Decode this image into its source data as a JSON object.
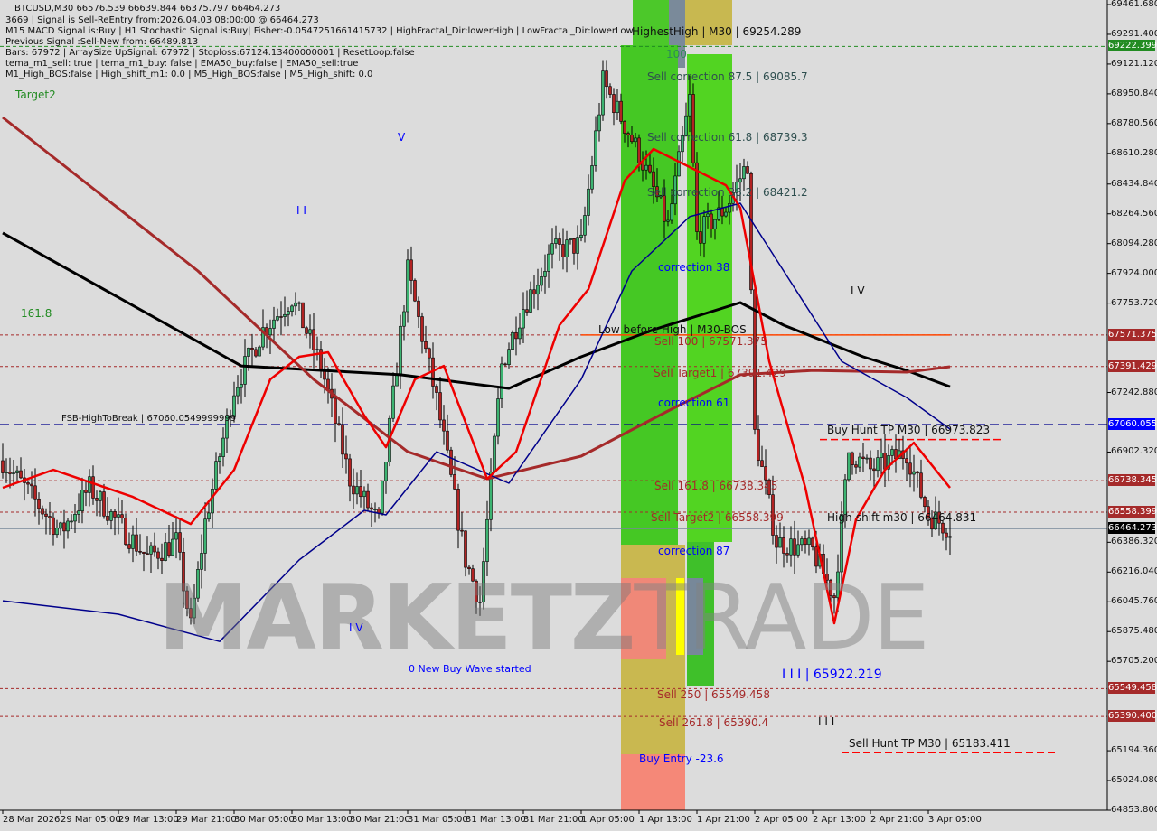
{
  "header": {
    "symbol_line": "BTCUSD,M30  66576.539 66639.844 66375.797 66464.273",
    "lines": [
      "3669 | Signal is Sell-ReEntry from:2026.04.03 08:00:00 @ 66464.273",
      "M15 MACD Signal is:Buy | H1 Stochastic Signal is:Buy| Fisher:-0.0547251661415732 | HighFractal_Dir:lowerHigh | LowFractal_Dir:lowerLow",
      "Previous Signal :Sell-New from: 66489.813",
      "Bars: 67972 | ArraySize UpSignal: 67972 | Stoploss:67124.13400000001 | ResetLoop:false",
      "tema_m1_sell: true | tema_m1_buy: false | EMA50_buy:false | EMA50_sell:true",
      "M1_High_BOS:false | High_shift_m1: 0.0 | M5_High_BOS:false | M5_High_shift: 0.0"
    ]
  },
  "watermark": {
    "bold": "MARKETZ",
    "thin": "TRADE"
  },
  "labels": {
    "target2": "Target2",
    "fib_1618": "161.8",
    "fib_100": "100",
    "fsb": "FSB-HighToBreak | 67060.0549999999",
    "wave_ii": "I I",
    "wave_v": "V",
    "wave_iv_left": "I V",
    "wave_iv_right": "I V",
    "new_buy_wave": "0 New Buy Wave started",
    "wave_iii_value": "I I I | 65922.219",
    "wave_iii": "I I I",
    "highest_high": "HighestHigh  |  M30  |  69254.289",
    "sell_corr_875": "Sell correction 87.5 | 69085.7",
    "sell_corr_618": "Sell correction 61.8 | 68739.3",
    "sell_corr_382": "Sell correction 38.2 | 68421.2",
    "correction_38": "correction 38",
    "correction_61": "correction 61",
    "correction_87": "correction 87",
    "low_before_high": "Low before High  |  M30-BOS",
    "sell_100": "Sell 100 | 67571.375",
    "sell_target1": "Sell Target1 | 67391.429",
    "buy_hunt_tp": "Buy Hunt TP M30  |  66973.823",
    "sell_1618": "Sell 161.8 | 66738.345",
    "sell_target2": "Sell Target2 | 66558.399",
    "high_shift": "High-shift m30  |  66464.831",
    "sell_250": "Sell  250 | 65549.458",
    "sell_2618": "Sell  261.8 | 65390.4",
    "sell_hunt_tp": "Sell Hunt TP M30 | 65183.411",
    "buy_entry": "Buy Entry -23.6"
  },
  "colors": {
    "background": "#dcdcdc",
    "bull": "#3cb371",
    "bear": "#b22222",
    "tema": "#ee0000",
    "ma_black": "#000000",
    "ma_brown": "#a52a2a",
    "ma_navy": "#00008b",
    "tag_green": "#228b22",
    "tag_red": "#a52a2a",
    "tag_blue": "#0000ff",
    "tag_black": "#000000"
  },
  "chart_data": {
    "type": "candlestick",
    "symbol": "BTCUSD",
    "timeframe": "M30",
    "ylim": [
      64853.8,
      69461.68
    ],
    "xlim": [
      "2026-03-28T21:00",
      "2026-04-03T08:00"
    ],
    "grid": false,
    "y_ticks": [
      "69461.680",
      "69291.400",
      "69121.120",
      "68950.840",
      "68780.560",
      "68610.280",
      "68434.840",
      "68264.560",
      "68094.280",
      "67924.000",
      "67753.720",
      "67242.880",
      "66902.320",
      "66386.320",
      "66216.040",
      "66045.760",
      "65875.480",
      "65705.200",
      "65194.360",
      "65024.080",
      "64853.800"
    ],
    "y_tick_values": [
      69461.68,
      69291.4,
      69121.12,
      68950.84,
      68780.56,
      68610.28,
      68434.84,
      68264.56,
      68094.28,
      67924.0,
      67753.72,
      67242.88,
      66902.32,
      66386.32,
      66216.04,
      66045.76,
      65875.48,
      65705.2,
      65194.36,
      65024.08,
      64853.8
    ],
    "x_ticks": [
      {
        "t": "2026-03-28T21:00",
        "label": "28 Mar 2026"
      },
      {
        "t": "2026-03-29T05:00",
        "label": "29 Mar 05:00"
      },
      {
        "t": "2026-03-29T13:00",
        "label": "29 Mar 13:00"
      },
      {
        "t": "2026-03-29T21:00",
        "label": "29 Mar 21:00"
      },
      {
        "t": "2026-03-30T05:00",
        "label": "30 Mar 05:00"
      },
      {
        "t": "2026-03-30T13:00",
        "label": "30 Mar 13:00"
      },
      {
        "t": "2026-03-30T21:00",
        "label": "30 Mar 21:00"
      },
      {
        "t": "2026-03-31T05:00",
        "label": "31 Mar 05:00"
      },
      {
        "t": "2026-03-31T13:00",
        "label": "31 Mar 13:00"
      },
      {
        "t": "2026-03-31T21:00",
        "label": "31 Mar 21:00"
      },
      {
        "t": "2026-04-01T05:00",
        "label": "1 Apr 05:00"
      },
      {
        "t": "2026-04-01T13:00",
        "label": "1 Apr 13:00"
      },
      {
        "t": "2026-04-01T21:00",
        "label": "1 Apr 21:00"
      },
      {
        "t": "2026-04-02T05:00",
        "label": "2 Apr 05:00"
      },
      {
        "t": "2026-04-02T13:00",
        "label": "2 Apr 13:00"
      },
      {
        "t": "2026-04-02T21:00",
        "label": "2 Apr 21:00"
      },
      {
        "t": "2026-04-03T05:00",
        "label": "3 Apr 05:00"
      }
    ],
    "price_tags": [
      {
        "value": 69222.399,
        "label": "69222.399",
        "color": "#228b22"
      },
      {
        "value": 67571.375,
        "label": "67571.375",
        "color": "#a52a2a"
      },
      {
        "value": 67391.429,
        "label": "67391.429",
        "color": "#a52a2a"
      },
      {
        "value": 67060.055,
        "label": "67060.055",
        "color": "#0000ff"
      },
      {
        "value": 66738.345,
        "label": "66738.345",
        "color": "#a52a2a"
      },
      {
        "value": 66558.399,
        "label": "66558.399",
        "color": "#a52a2a"
      },
      {
        "value": 66464.273,
        "label": "66464.273",
        "color": "#000000"
      },
      {
        "value": 65549.458,
        "label": "65549.458",
        "color": "#a52a2a"
      },
      {
        "value": 65390.4,
        "label": "65390.400",
        "color": "#a52a2a"
      }
    ],
    "levels": [
      {
        "value": 69222.399,
        "color": "#228b22",
        "style": "dash"
      },
      {
        "value": 67571.375,
        "color": "#a52a2a",
        "style": "dot"
      },
      {
        "value": 67391.429,
        "color": "#a52a2a",
        "style": "dot"
      },
      {
        "value": 67060.055,
        "color": "#00008b",
        "style": "longdash"
      },
      {
        "value": 66738.345,
        "color": "#a52a2a",
        "style": "dot"
      },
      {
        "value": 66558.399,
        "color": "#a52a2a",
        "style": "dot"
      },
      {
        "value": 66464.273,
        "color": "#778899",
        "style": "solid"
      },
      {
        "value": 65549.458,
        "color": "#a52a2a",
        "style": "dot"
      },
      {
        "value": 65390.4,
        "color": "#a52a2a",
        "style": "dot"
      }
    ],
    "segments": [
      {
        "name": "sell-100-line",
        "value": 67571.375,
        "from": "2026-04-01T05:00",
        "to": "2026-04-03T08:00",
        "color": "#ff4500"
      },
      {
        "name": "buy-hunt-tp-line",
        "value": 66973.823,
        "from": "2026-04-02T14:00",
        "to": "2026-04-03T15:00",
        "color": "#ff0000"
      },
      {
        "name": "sell-hunt-tp-line",
        "value": 65183.411,
        "from": "2026-04-02T17:00",
        "to": "2026-04-03T23:00",
        "color": "#ff0000"
      }
    ],
    "price_path": [
      [
        "2026-03-28T21:00",
        66853
      ],
      [
        "2026-03-29T01:00",
        66650
      ],
      [
        "2026-03-29T05:00",
        66440
      ],
      [
        "2026-03-29T09:00",
        66700
      ],
      [
        "2026-03-29T13:00",
        66491
      ],
      [
        "2026-03-29T17:00",
        66300
      ],
      [
        "2026-03-29T21:00",
        66388
      ],
      [
        "2026-03-29T23:00",
        65900
      ],
      [
        "2026-03-30T01:00",
        66500
      ],
      [
        "2026-03-30T05:00",
        67266
      ],
      [
        "2026-03-30T09:00",
        67600
      ],
      [
        "2026-03-30T13:00",
        67783
      ],
      [
        "2026-03-30T17:00",
        67400
      ],
      [
        "2026-03-30T21:00",
        66749
      ],
      [
        "2026-03-31T01:00",
        66500
      ],
      [
        "2026-03-31T05:00",
        67937
      ],
      [
        "2026-03-31T09:00",
        67200
      ],
      [
        "2026-03-31T13:00",
        66285
      ],
      [
        "2026-03-31T15:00",
        66050
      ],
      [
        "2026-03-31T18:00",
        67400
      ],
      [
        "2026-03-31T21:00",
        67731
      ],
      [
        "2026-04-01T01:00",
        68050
      ],
      [
        "2026-04-01T05:00",
        68092
      ],
      [
        "2026-04-01T08:00",
        69020
      ],
      [
        "2026-04-01T13:00",
        68609
      ],
      [
        "2026-04-01T17:00",
        68196
      ],
      [
        "2026-04-01T20:00",
        68919
      ],
      [
        "2026-04-01T21:00",
        68144
      ],
      [
        "2026-04-02T01:00",
        68299
      ],
      [
        "2026-04-02T04:00",
        68557
      ],
      [
        "2026-04-02T05:00",
        67008
      ],
      [
        "2026-04-02T08:00",
        66388
      ],
      [
        "2026-04-02T13:00",
        66336
      ],
      [
        "2026-04-02T16:00",
        66078
      ],
      [
        "2026-04-02T18:00",
        66904
      ],
      [
        "2026-04-02T21:00",
        66800
      ],
      [
        "2026-04-03T02:00",
        66904
      ],
      [
        "2026-04-03T05:00",
        66543
      ],
      [
        "2026-04-03T08:00",
        66464
      ]
    ],
    "series": [
      {
        "key": "ma_black",
        "points": [
          [
            "2026-03-28T21:00",
            68155
          ],
          [
            "2026-03-30T06:00",
            67395
          ],
          [
            "2026-03-31T04:00",
            67344
          ],
          [
            "2026-03-31T19:00",
            67266
          ],
          [
            "2026-04-01T05:00",
            67447
          ],
          [
            "2026-04-01T15:00",
            67602
          ],
          [
            "2026-04-02T03:00",
            67757
          ],
          [
            "2026-04-02T09:00",
            67628
          ],
          [
            "2026-04-02T20:00",
            67447
          ],
          [
            "2026-04-03T02:00",
            67369
          ],
          [
            "2026-04-03T08:00",
            67276
          ]
        ]
      },
      {
        "key": "ma_brown",
        "points": [
          [
            "2026-03-28T21:00",
            68816
          ],
          [
            "2026-03-30T00:00",
            67938
          ],
          [
            "2026-03-30T16:00",
            67318
          ],
          [
            "2026-03-31T05:00",
            66904
          ],
          [
            "2026-03-31T16:00",
            66749
          ],
          [
            "2026-04-01T05:00",
            66879
          ],
          [
            "2026-04-01T17:00",
            67137
          ],
          [
            "2026-04-02T03:00",
            67344
          ],
          [
            "2026-04-02T13:00",
            67369
          ],
          [
            "2026-04-03T02:00",
            67359
          ],
          [
            "2026-04-03T08:00",
            67390
          ]
        ]
      },
      {
        "key": "ma_navy",
        "points": [
          [
            "2026-03-28T21:00",
            66052
          ],
          [
            "2026-03-29T13:00",
            65975
          ],
          [
            "2026-03-30T03:00",
            65819
          ],
          [
            "2026-03-30T14:00",
            66285
          ],
          [
            "2026-03-30T23:00",
            66569
          ],
          [
            "2026-03-31T02:00",
            66543
          ],
          [
            "2026-03-31T09:00",
            66904
          ],
          [
            "2026-03-31T19:00",
            66724
          ],
          [
            "2026-04-01T05:00",
            67318
          ],
          [
            "2026-04-01T12:00",
            67938
          ],
          [
            "2026-04-01T20:00",
            68248
          ],
          [
            "2026-04-02T03:00",
            68325
          ],
          [
            "2026-04-02T09:00",
            67938
          ],
          [
            "2026-04-02T17:00",
            67421
          ],
          [
            "2026-04-03T02:00",
            67214
          ],
          [
            "2026-04-03T08:00",
            67034
          ]
        ]
      },
      {
        "key": "tema",
        "points": [
          [
            "2026-03-28T21:00",
            66698
          ],
          [
            "2026-03-29T04:00",
            66801
          ],
          [
            "2026-03-29T15:00",
            66646
          ],
          [
            "2026-03-29T23:00",
            66491
          ],
          [
            "2026-03-30T05:00",
            66801
          ],
          [
            "2026-03-30T10:00",
            67318
          ],
          [
            "2026-03-30T14:00",
            67447
          ],
          [
            "2026-03-30T18:00",
            67473
          ],
          [
            "2026-03-30T23:00",
            67111
          ],
          [
            "2026-03-31T02:00",
            66930
          ],
          [
            "2026-03-31T06:00",
            67318
          ],
          [
            "2026-03-31T10:00",
            67395
          ],
          [
            "2026-03-31T16:00",
            66749
          ],
          [
            "2026-03-31T20:00",
            66904
          ],
          [
            "2026-04-01T02:00",
            67628
          ],
          [
            "2026-04-01T06:00",
            67834
          ],
          [
            "2026-04-01T11:00",
            68454
          ],
          [
            "2026-04-01T15:00",
            68635
          ],
          [
            "2026-04-01T20:00",
            68532
          ],
          [
            "2026-04-02T01:00",
            68428
          ],
          [
            "2026-04-02T03:00",
            68299
          ],
          [
            "2026-04-02T07:00",
            67421
          ],
          [
            "2026-04-02T12:00",
            66698
          ],
          [
            "2026-04-02T16:00",
            65923
          ],
          [
            "2026-04-02T19:00",
            66517
          ],
          [
            "2026-04-02T23:00",
            66801
          ],
          [
            "2026-04-03T03:00",
            66956
          ],
          [
            "2026-04-03T08:00",
            66698
          ]
        ]
      }
    ]
  }
}
